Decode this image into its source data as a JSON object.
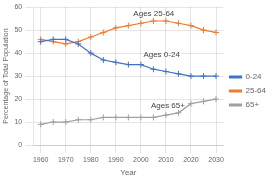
{
  "chart_data": {
    "type": "line",
    "x": [
      1960,
      1965,
      1970,
      1975,
      1980,
      1985,
      1990,
      1995,
      2000,
      2005,
      2010,
      2015,
      2020,
      2025,
      2030
    ],
    "xlabel": "Year",
    "ylabel": "Percentage of Total Population",
    "xlim": [
      1957,
      2033
    ],
    "xticks": [
      1960,
      1970,
      1980,
      1990,
      2000,
      2010,
      2020,
      2030
    ],
    "ylim": [
      0,
      60
    ],
    "yticks": [
      0,
      10,
      20,
      30,
      40,
      50,
      60
    ],
    "grid": true,
    "legend": "right",
    "series": [
      {
        "name": "0-24",
        "color": "#4472c4",
        "marker": "plus",
        "line_style": "solid",
        "values": [
          45,
          46,
          46,
          44,
          40,
          37,
          36,
          35,
          35,
          33,
          32,
          31,
          30,
          30,
          30
        ]
      },
      {
        "name": "25-64",
        "color": "#ed7d31",
        "marker": "plus",
        "line_style": "solid",
        "values": [
          46,
          45,
          44,
          45,
          47,
          49,
          51,
          52,
          53,
          54,
          54,
          53,
          52,
          50,
          49
        ]
      },
      {
        "name": "65+",
        "color": "#a0a0a0",
        "marker": "plus",
        "line_style": "solid",
        "values": [
          9,
          10,
          10,
          11,
          11,
          12,
          12,
          12,
          12,
          12,
          13,
          14,
          18,
          19,
          20
        ]
      }
    ],
    "annotations": [
      {
        "text": "Ages 25-64",
        "x": 1997,
        "y": 55.5,
        "color": "#444444"
      },
      {
        "text": "Ages 0-24",
        "x": 2001,
        "y": 37.5,
        "color": "#444444"
      },
      {
        "text": "Ages 65+",
        "x": 2004,
        "y": 15.5,
        "color": "#444444"
      }
    ]
  }
}
